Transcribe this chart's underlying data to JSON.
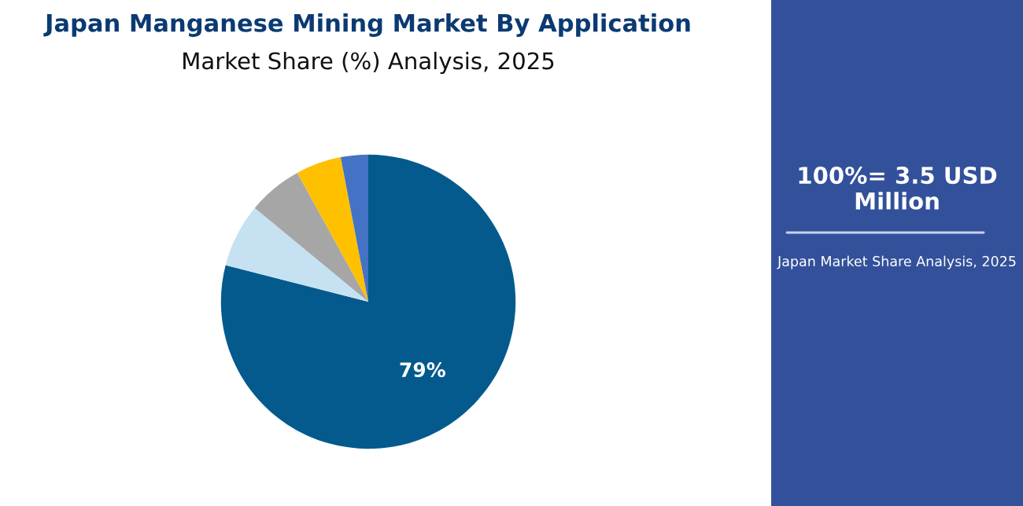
{
  "chart_data": {
    "type": "pie",
    "title": "Japan Manganese Mining Market By Application",
    "subtitle": "Market Share (%) Analysis, 2025",
    "categories": [
      null,
      null,
      null,
      null,
      null
    ],
    "values": [
      79,
      7,
      6,
      5,
      3
    ],
    "colors": [
      "#045a8d",
      "#c6e2f2",
      "#a6a6a6",
      "#ffc000",
      "#4472c4"
    ],
    "value_labels": [
      "79%",
      null,
      null,
      null,
      null
    ],
    "annotations": [
      "100%= 3.5 USD Million",
      "Japan Market Share Analysis, 2025"
    ],
    "legend": false
  }
}
